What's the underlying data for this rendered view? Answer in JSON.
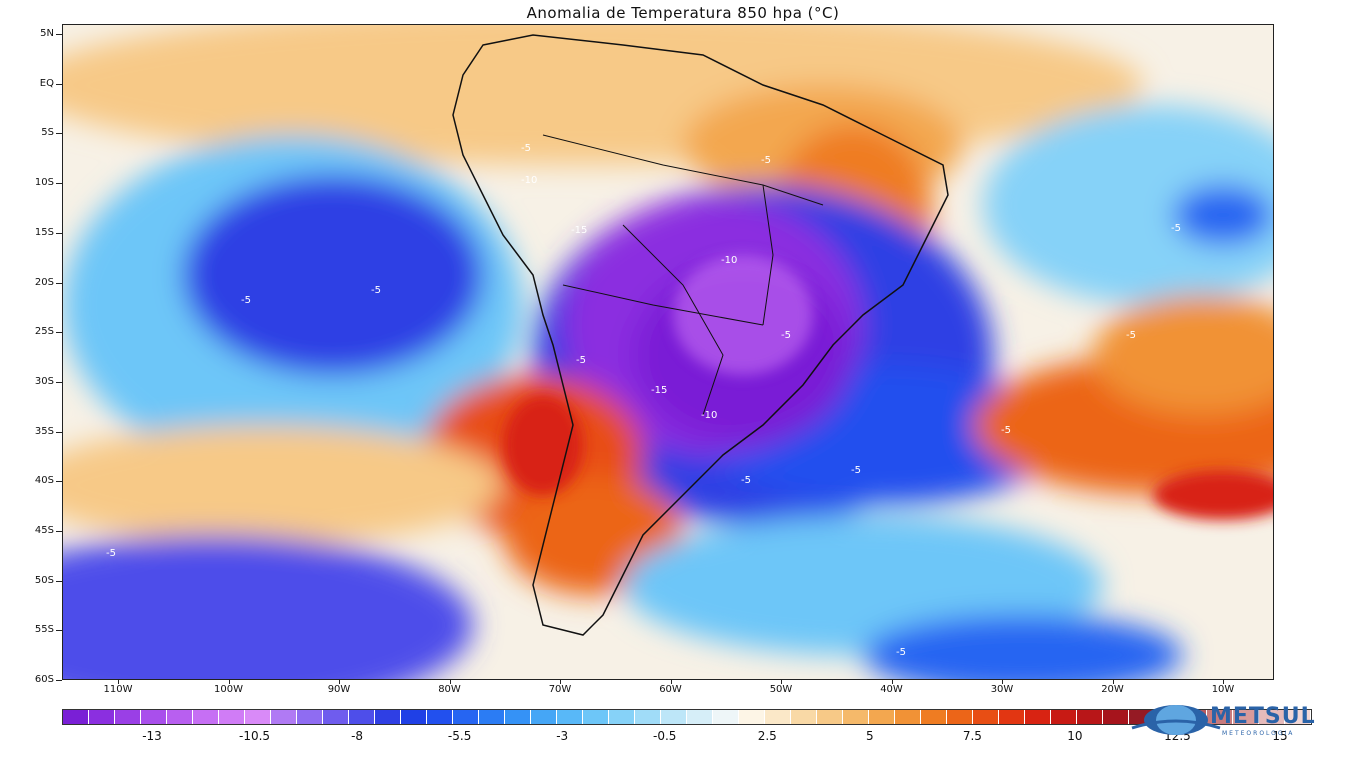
{
  "title": "Anomalia de Temperatura 850 hpa (°C)",
  "latitude_labels": [
    "5N",
    "EQ",
    "5S",
    "10S",
    "15S",
    "20S",
    "25S",
    "30S",
    "35S",
    "40S",
    "45S",
    "50S",
    "55S",
    "60S"
  ],
  "longitude_labels": [
    "110W",
    "100W",
    "90W",
    "80W",
    "70W",
    "60W",
    "50W",
    "40W",
    "30W",
    "20W",
    "10W"
  ],
  "contour_labels": [
    "-5",
    "-10",
    "-15",
    "-10",
    "-15",
    "-10",
    "-5",
    "-5",
    "-5",
    "-5",
    "-5",
    "-5",
    "-5",
    "-5",
    "-5",
    "-5",
    "-5",
    "-5"
  ],
  "colorbar": {
    "tick_labels": [
      "-13",
      "-10.5",
      "-8",
      "-5.5",
      "-3",
      "-0.5",
      "2.5",
      "5",
      "7.5",
      "10",
      "12.5",
      "15"
    ],
    "colors": [
      "#7a1fd6",
      "#8b2fe0",
      "#9a3fe6",
      "#a94fec",
      "#b85ff0",
      "#c66ff4",
      "#d07cf6",
      "#d98af8",
      "#b07af4",
      "#8f6cf2",
      "#6f5cee",
      "#4e4eea",
      "#2f3fe4",
      "#1f40e6",
      "#2250ee",
      "#2665f2",
      "#2b7cf4",
      "#3592f6",
      "#45a6f6",
      "#58b8f8",
      "#6dc6f8",
      "#86d2f8",
      "#a0dcf8",
      "#bde6f8",
      "#d6eef8",
      "#eef6f8",
      "#fdf5e6",
      "#fbe8c8",
      "#f9d9a6",
      "#f7c987",
      "#f5b96a",
      "#f3a74f",
      "#f19236",
      "#ef7c22",
      "#ec6518",
      "#e84e14",
      "#e23612",
      "#d82312",
      "#c81a14",
      "#b81618",
      "#a6141c",
      "#951a24",
      "#a83a40",
      "#b85a5e",
      "#c87a7c",
      "#d89a9a",
      "#e6baba",
      "#f2d6d4"
    ]
  },
  "logo": {
    "name": "METSUL",
    "tagline": "METEOROLOGIA"
  }
}
